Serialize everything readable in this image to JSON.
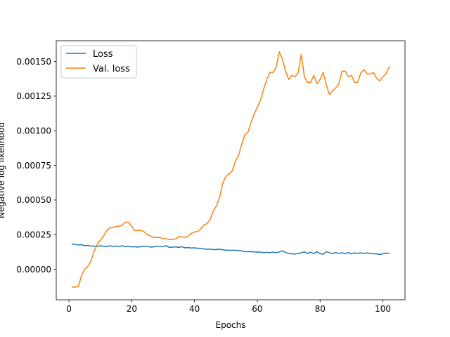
{
  "chart_data": {
    "type": "line",
    "title": "",
    "xlabel": "Epochs",
    "ylabel": "Negative log likelihood",
    "xlim": [
      -4.05,
      107.05
    ],
    "ylim": [
      -0.00022,
      0.00165
    ],
    "xticks": [
      0,
      20,
      40,
      60,
      80,
      100
    ],
    "xtick_labels": [
      "0",
      "20",
      "40",
      "60",
      "80",
      "100"
    ],
    "yticks": [
      0.0,
      0.00025,
      0.0005,
      0.00075,
      0.001,
      0.00125,
      0.0015
    ],
    "ytick_labels": [
      "0.00000",
      "0.00025",
      "0.00050",
      "0.00075",
      "0.00100",
      "0.00125",
      "0.00150"
    ],
    "grid": false,
    "legend_position": "top-left",
    "series": [
      {
        "name": "Loss",
        "color": "#1f77b4",
        "x": [
          1,
          2,
          3,
          4,
          5,
          6,
          7,
          8,
          9,
          10,
          11,
          12,
          13,
          14,
          15,
          16,
          17,
          18,
          19,
          20,
          21,
          22,
          23,
          24,
          25,
          26,
          27,
          28,
          29,
          30,
          31,
          32,
          33,
          34,
          35,
          36,
          37,
          38,
          39,
          40,
          41,
          42,
          43,
          44,
          45,
          46,
          47,
          48,
          49,
          50,
          51,
          52,
          53,
          54,
          55,
          56,
          57,
          58,
          59,
          60,
          61,
          62,
          63,
          64,
          65,
          66,
          67,
          68,
          69,
          70,
          71,
          72,
          73,
          74,
          75,
          76,
          77,
          78,
          79,
          80,
          81,
          82,
          83,
          84,
          85,
          86,
          87,
          88,
          89,
          90,
          91,
          92,
          93,
          94,
          95,
          96,
          97,
          98,
          99,
          100,
          101,
          102
        ],
        "values": [
          0.000182,
          0.00018,
          0.000175,
          0.000178,
          0.00017,
          0.000172,
          0.000168,
          0.000168,
          0.000165,
          0.00017,
          0.000167,
          0.000163,
          0.00017,
          0.000166,
          0.000168,
          0.000165,
          0.00017,
          0.000163,
          0.000165,
          0.000162,
          0.000163,
          0.00016,
          0.000165,
          0.000167,
          0.000166,
          0.00016,
          0.000162,
          0.000168,
          0.000163,
          0.000166,
          0.00017,
          0.000158,
          0.00016,
          0.000162,
          0.000158,
          0.000163,
          0.000155,
          0.000157,
          0.000154,
          0.000155,
          0.000152,
          0.000152,
          0.000147,
          0.000145,
          0.000146,
          0.000142,
          0.000144,
          0.000145,
          0.000141,
          0.000138,
          0.000138,
          0.000137,
          0.000138,
          0.000136,
          0.000133,
          0.000128,
          0.000127,
          0.000128,
          0.000125,
          0.000124,
          0.000124,
          0.000121,
          0.000123,
          0.00012,
          0.000124,
          0.00012,
          0.000125,
          0.000133,
          0.000122,
          0.000113,
          0.000112,
          0.00011,
          0.000115,
          0.000119,
          0.000126,
          0.000115,
          0.000124,
          0.000112,
          0.000128,
          0.000113,
          0.000109,
          0.000127,
          0.00012,
          0.000113,
          0.000122,
          0.000114,
          0.00012,
          0.000112,
          0.000122,
          0.000111,
          0.000118,
          0.000116,
          0.000118,
          0.000115,
          0.000118,
          0.000114,
          0.000112,
          0.000112,
          0.000107,
          0.000112,
          0.000117,
          0.000115
        ]
      },
      {
        "name": "Val. loss",
        "color": "#ff7f0e",
        "x": [
          1,
          2,
          3,
          4,
          5,
          6,
          7,
          8,
          9,
          10,
          11,
          12,
          13,
          14,
          15,
          16,
          17,
          18,
          19,
          20,
          21,
          22,
          23,
          24,
          25,
          26,
          27,
          28,
          29,
          30,
          31,
          32,
          33,
          34,
          35,
          36,
          37,
          38,
          39,
          40,
          41,
          42,
          43,
          44,
          45,
          46,
          47,
          48,
          49,
          50,
          51,
          52,
          53,
          54,
          55,
          56,
          57,
          58,
          59,
          60,
          61,
          62,
          63,
          64,
          65,
          66,
          67,
          68,
          69,
          70,
          71,
          72,
          73,
          74,
          75,
          76,
          77,
          78,
          79,
          80,
          81,
          82,
          83,
          84,
          85,
          86,
          87,
          88,
          89,
          90,
          91,
          92,
          93,
          94,
          95,
          96,
          97,
          98,
          99,
          100,
          101,
          102
        ],
        "values": [
          -0.000128,
          -0.000128,
          -0.000125,
          -4.5e-05,
          0.0,
          2e-05,
          6e-05,
          0.00013,
          0.00018,
          0.00021,
          0.00024,
          0.00028,
          0.0003,
          0.0003,
          0.00031,
          0.00031,
          0.00032,
          0.00034,
          0.00034,
          0.00031,
          0.00028,
          0.00028,
          0.00028,
          0.00027,
          0.00025,
          0.00024,
          0.00023,
          0.00023,
          0.00023,
          0.00022,
          0.00022,
          0.000215,
          0.000215,
          0.00022,
          0.000235,
          0.000235,
          0.00023,
          0.00024,
          0.00026,
          0.00027,
          0.000272,
          0.00029,
          0.00032,
          0.00033,
          0.00036,
          0.00042,
          0.00046,
          0.00052,
          0.00062,
          0.00067,
          0.00069,
          0.00071,
          0.00078,
          0.00082,
          0.0009,
          0.00097,
          0.00099,
          0.00106,
          0.00112,
          0.00117,
          0.00122,
          0.0013,
          0.00137,
          0.00142,
          0.00142,
          0.00146,
          0.00157,
          0.00152,
          0.00143,
          0.00137,
          0.0014,
          0.00139,
          0.00142,
          0.00155,
          0.00139,
          0.00135,
          0.00135,
          0.0014,
          0.00134,
          0.00137,
          0.00142,
          0.00133,
          0.00126,
          0.00129,
          0.00131,
          0.00134,
          0.00143,
          0.00143,
          0.00139,
          0.0014,
          0.00135,
          0.00135,
          0.00142,
          0.00144,
          0.00141,
          0.00141,
          0.00142,
          0.00138,
          0.00136,
          0.00139,
          0.00141,
          0.00146
        ]
      }
    ]
  }
}
